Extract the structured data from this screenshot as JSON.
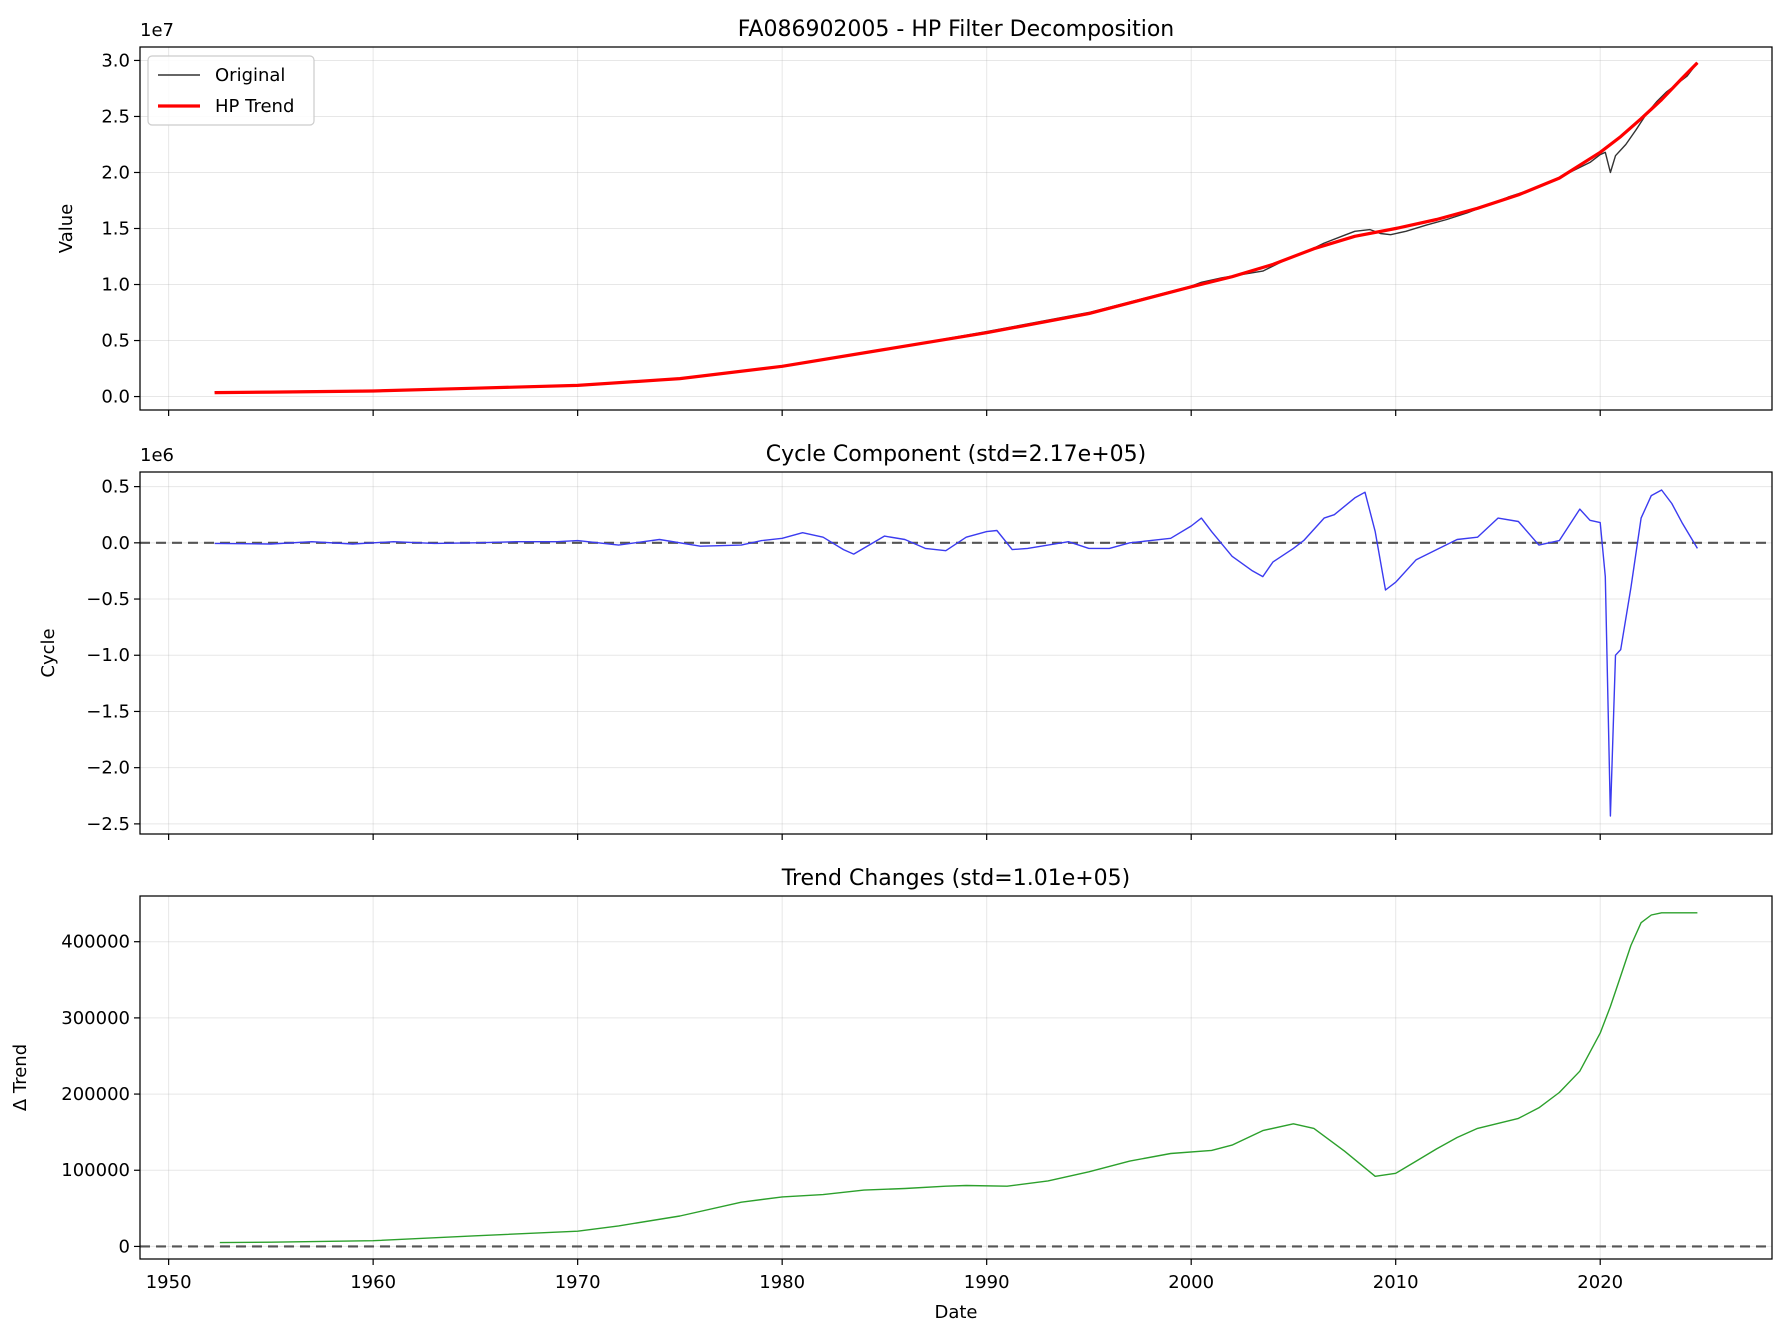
{
  "figure": {
    "xlabel": "Date",
    "xticks": [
      1950,
      1960,
      1970,
      1980,
      1990,
      2000,
      2010,
      2020
    ],
    "xlim": [
      1948.6,
      2028.4
    ]
  },
  "chart_data": [
    {
      "type": "line",
      "title": "FA086902005 - HP Filter Decomposition",
      "ylabel": "Value",
      "offset_label": "1e7",
      "ylim": [
        -0.12,
        3.12
      ],
      "yticks": [
        0.0,
        0.5,
        1.0,
        1.5,
        2.0,
        2.5,
        3.0
      ],
      "ytick_labels": [
        "0.0",
        "0.5",
        "1.0",
        "1.5",
        "2.0",
        "2.5",
        "3.0"
      ],
      "grid": true,
      "legend": "top-left",
      "series": [
        {
          "name": "Original",
          "color": "#333333",
          "x": [
            1952.25,
            1955,
            1960,
            1965,
            1970,
            1975,
            1980,
            1985,
            1990,
            1995,
            2000,
            2000.5,
            2001.5,
            2002.5,
            2003.5,
            2004.5,
            2005.5,
            2006.5,
            2007.5,
            2008,
            2008.75,
            2009.25,
            2009.75,
            2010.5,
            2011.5,
            2012.5,
            2013.5,
            2014.5,
            2015.5,
            2016.5,
            2017.5,
            2018.5,
            2019.5,
            2020.0,
            2020.25,
            2020.5,
            2020.75,
            2021.25,
            2021.75,
            2022.25,
            2022.75,
            2023.25,
            2023.75,
            2024.25,
            2024.75
          ],
          "values": [
            0.04,
            0.045,
            0.055,
            0.078,
            0.105,
            0.16,
            0.272,
            0.42,
            0.58,
            0.75,
            0.985,
            1.02,
            1.06,
            1.09,
            1.12,
            1.21,
            1.28,
            1.37,
            1.44,
            1.475,
            1.49,
            1.455,
            1.445,
            1.475,
            1.53,
            1.58,
            1.64,
            1.71,
            1.78,
            1.84,
            1.91,
            2.0,
            2.09,
            2.16,
            2.18,
            2.0,
            2.15,
            2.25,
            2.38,
            2.52,
            2.63,
            2.72,
            2.79,
            2.86,
            2.98
          ]
        },
        {
          "name": "HP Trend",
          "color": "#ff0000",
          "x": [
            1952.25,
            1955,
            1960,
            1965,
            1970,
            1975,
            1980,
            1985,
            1990,
            1995,
            2000,
            2002,
            2004,
            2006,
            2008,
            2010,
            2012,
            2014,
            2016,
            2018,
            2020,
            2021,
            2022,
            2023,
            2024,
            2024.75
          ],
          "values": [
            0.035,
            0.04,
            0.05,
            0.075,
            0.1,
            0.16,
            0.27,
            0.42,
            0.57,
            0.74,
            0.98,
            1.07,
            1.18,
            1.32,
            1.43,
            1.5,
            1.58,
            1.68,
            1.8,
            1.95,
            2.18,
            2.32,
            2.48,
            2.65,
            2.84,
            2.98
          ]
        }
      ]
    },
    {
      "type": "line",
      "title": "Cycle Component (std=2.17e+05)",
      "ylabel": "Cycle",
      "offset_label": "1e6",
      "ylim": [
        -2.59,
        0.63
      ],
      "yticks": [
        -2.5,
        -2.0,
        -1.5,
        -1.0,
        -0.5,
        0.0,
        0.5
      ],
      "ytick_labels": [
        "−2.5",
        "−2.0",
        "−1.5",
        "−1.0",
        "−0.5",
        "0.0",
        "0.5"
      ],
      "grid": true,
      "zero_line": true,
      "series": [
        {
          "name": "",
          "color": "#3b3bf0",
          "x": [
            1952.25,
            1955,
            1957,
            1959,
            1961,
            1963,
            1965,
            1967,
            1969,
            1970,
            1972,
            1974,
            1976,
            1978,
            1979,
            1980,
            1981,
            1982,
            1983,
            1983.5,
            1985,
            1986,
            1987,
            1988,
            1989,
            1990,
            1990.5,
            1991.25,
            1992,
            1993,
            1994,
            1995,
            1996,
            1997,
            1998,
            1999,
            2000,
            2000.5,
            2001,
            2002,
            2003,
            2003.5,
            2004,
            2005,
            2005.5,
            2006.5,
            2007,
            2008,
            2008.5,
            2009,
            2009.5,
            2010,
            2011,
            2012,
            2013,
            2014,
            2015,
            2016,
            2017,
            2018,
            2019,
            2019.5,
            2020,
            2020.25,
            2020.5,
            2020.75,
            2021,
            2021.5,
            2022,
            2022.5,
            2023,
            2023.5,
            2024,
            2024.75
          ],
          "values": [
            -0.005,
            -0.01,
            0.01,
            -0.01,
            0.01,
            -0.005,
            0.0,
            0.01,
            0.01,
            0.02,
            -0.02,
            0.03,
            -0.03,
            -0.02,
            0.02,
            0.04,
            0.09,
            0.05,
            -0.06,
            -0.1,
            0.06,
            0.03,
            -0.05,
            -0.07,
            0.05,
            0.1,
            0.11,
            -0.06,
            -0.05,
            -0.02,
            0.01,
            -0.05,
            -0.05,
            0.0,
            0.02,
            0.04,
            0.15,
            0.22,
            0.1,
            -0.12,
            -0.25,
            -0.3,
            -0.17,
            -0.05,
            0.02,
            0.22,
            0.25,
            0.4,
            0.45,
            0.1,
            -0.42,
            -0.35,
            -0.15,
            -0.06,
            0.03,
            0.05,
            0.22,
            0.19,
            -0.02,
            0.02,
            0.3,
            0.2,
            0.18,
            -0.3,
            -2.43,
            -1.0,
            -0.95,
            -0.4,
            0.22,
            0.42,
            0.47,
            0.35,
            0.18,
            -0.05
          ]
        }
      ]
    },
    {
      "type": "line",
      "title": "Trend Changes (std=1.01e+05)",
      "ylabel": "Δ Trend",
      "ylim": [
        -16500,
        460000
      ],
      "yticks": [
        0,
        100000,
        200000,
        300000,
        400000
      ],
      "ytick_labels": [
        "0",
        "100000",
        "200000",
        "300000",
        "400000"
      ],
      "grid": true,
      "zero_line": true,
      "series": [
        {
          "name": "",
          "color": "#2ca02c",
          "x": [
            1952.5,
            1955,
            1960,
            1965,
            1970,
            1972,
            1975,
            1978,
            1980,
            1982,
            1984,
            1986,
            1988,
            1989,
            1991,
            1993,
            1995,
            1997,
            1999,
            2001,
            2002,
            2003.5,
            2005,
            2006,
            2007.5,
            2009,
            2010,
            2011,
            2012,
            2013,
            2014,
            2016,
            2017,
            2018,
            2019,
            2020,
            2020.5,
            2021,
            2021.5,
            2022,
            2022.5,
            2023,
            2024,
            2024.75
          ],
          "values": [
            5000,
            5500,
            7500,
            14000,
            20000,
            27000,
            40000,
            58000,
            65000,
            68000,
            74000,
            76000,
            79000,
            80000,
            79000,
            86000,
            98000,
            112000,
            122000,
            126000,
            133000,
            152000,
            161000,
            155000,
            125000,
            92000,
            96000,
            112000,
            128000,
            143000,
            155000,
            168000,
            182000,
            202000,
            230000,
            280000,
            315000,
            355000,
            395000,
            425000,
            435000,
            438000,
            438000,
            438000
          ]
        }
      ]
    }
  ]
}
